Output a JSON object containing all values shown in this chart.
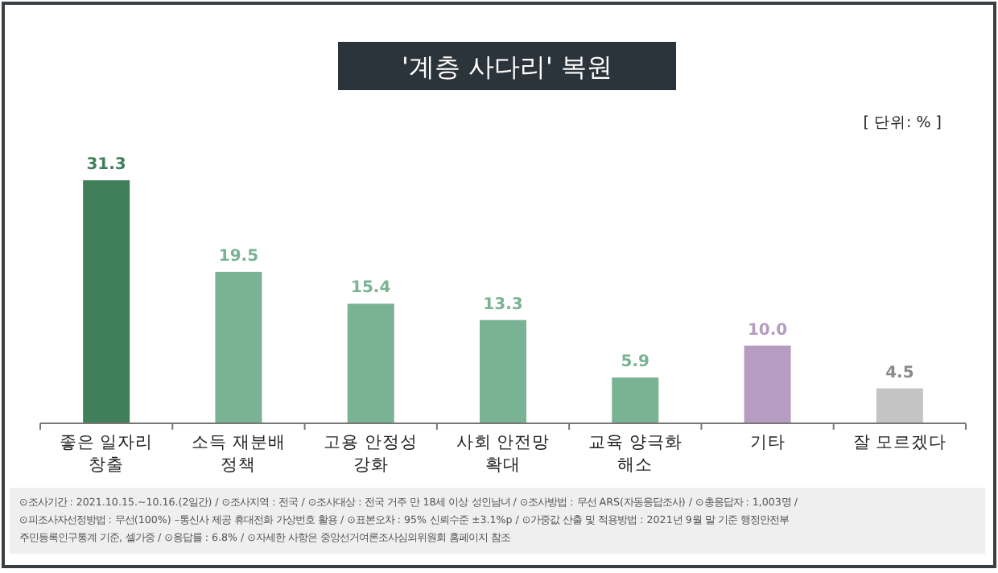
{
  "chart_data": {
    "type": "bar",
    "title": "'계층 사다리' 복원",
    "categories": [
      "좋은 일자리\n창출",
      "소득 재분배\n정책",
      "고용 안정성\n강화",
      "사회 안전망\n확대",
      "교육 양극화\n해소",
      "기타",
      "잘 모르겠다"
    ],
    "values": [
      31.3,
      19.5,
      15.4,
      13.3,
      5.9,
      10.0,
      4.5
    ],
    "colors": [
      "#3f7f5a",
      "#7ab294",
      "#7ab294",
      "#7ab294",
      "#7ab294",
      "#b59cc0",
      "#c4c4c4"
    ],
    "value_labels": [
      "31.3",
      "19.5",
      "15.4",
      "13.3",
      "5.9",
      "10.0",
      "4.5"
    ],
    "annotations": [
      "[ 단위: % ]",
      "⊙조사기간 : 2021.10.15.~10.16.(2일간) / ⊙조사지역 : 전국 / ⊙조사대상 : 전국 거주 만 18세 이상 성인남녀 / ⊙조사방법 : 무선 ARS(자동응답조사) / ⊙총응답자 : 1,003명 /",
      "⊙피조사자선정방법 : 무선(100%) –통신사 제공 휴대전화 가상번호 활용 / ⊙표본오차 : 95% 신뢰수준 ±3.1%p / ⊙가중값 산출 및 적용방법 : 2021년 9월 말 기준 행정안전부",
      "주민등록인구통계 기준, 셀가중 / ⊙응답률 : 6.8% / ⊙자세한 사항은 중앙선거여론조사심의위원회 홈페이지 참조"
    ]
  }
}
